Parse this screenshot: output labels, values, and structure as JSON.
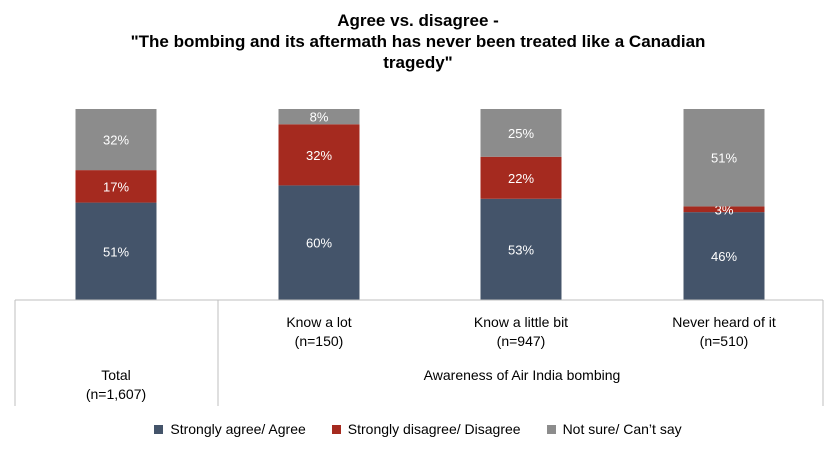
{
  "title_lines": [
    "Agree vs. disagree -",
    "\"The bombing and its aftermath has never been treated like a Canadian",
    "tragedy\""
  ],
  "chart_data": {
    "type": "bar",
    "stacked": true,
    "percent_scale": true,
    "title": "Agree vs. disagree - \"The bombing and its aftermath has never been treated like a Canadian tragedy\"",
    "categories": [
      "Total (n=1,607)",
      "Know a lot (n=150)",
      "Know a little bit (n=947)",
      "Never heard of it (n=510)"
    ],
    "category_labels": [
      {
        "line1": "Total",
        "line2": "(n=1,607)"
      },
      {
        "line1": "Know a lot",
        "line2": "(n=150)"
      },
      {
        "line1": "Know a little bit",
        "line2": "(n=947)"
      },
      {
        "line1": "Never heard of it",
        "line2": "(n=510)"
      }
    ],
    "group_label": "Awareness of Air India bombing",
    "series": [
      {
        "name": "Strongly agree/ Agree",
        "color": "#44546a",
        "values": [
          51,
          60,
          53,
          46
        ],
        "labels": [
          "51%",
          "60%",
          "53%",
          "46%"
        ]
      },
      {
        "name": "Strongly disagree/ Disagree",
        "color": "#a52a1f",
        "values": [
          17,
          32,
          22,
          3
        ],
        "labels": [
          "17%",
          "32%",
          "22%",
          "3%"
        ]
      },
      {
        "name": "Not sure/ Can’t say",
        "color": "#8c8c8c",
        "values": [
          32,
          8,
          25,
          51
        ],
        "labels": [
          "32%",
          "8%",
          "25%",
          "51%"
        ]
      }
    ],
    "legend_position": "bottom",
    "grid": false
  }
}
